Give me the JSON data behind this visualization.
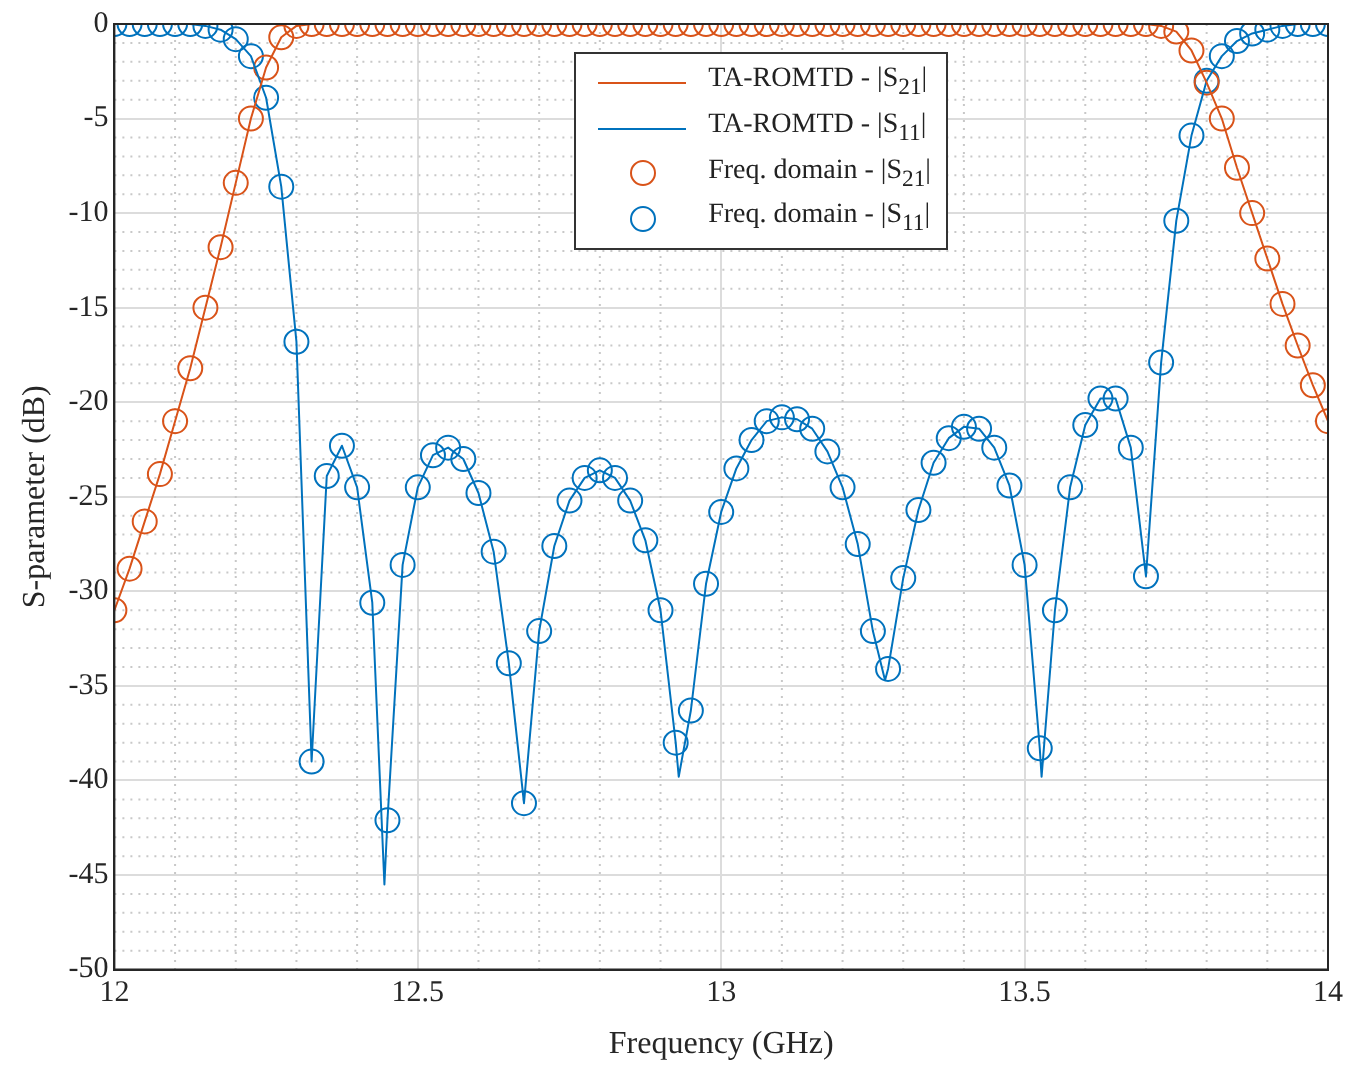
{
  "chart_data": {
    "type": "line",
    "xlabel": "Frequency (GHz)",
    "ylabel": "S-parameter (dB)",
    "xlim": [
      12,
      14
    ],
    "xticks": [
      12,
      12.5,
      13,
      13.5,
      14
    ],
    "ylim": [
      -50,
      0
    ],
    "yticks": [
      -50,
      -45,
      -40,
      -35,
      -30,
      -25,
      -20,
      -15,
      -10,
      -5,
      0
    ],
    "grid": true,
    "legend": "top",
    "marker": "circle",
    "series": [
      {
        "name": "TA-ROMTD - |S$_{21}$|",
        "type": "line",
        "marker": "none",
        "color": "#d95319",
        "x": [
          12,
          12.025,
          12.05,
          12.075,
          12.1,
          12.125,
          12.15,
          12.175,
          12.2,
          12.225,
          12.25,
          12.275,
          12.3,
          12.325,
          12.35,
          12.375,
          12.4,
          12.425,
          12.45,
          12.475,
          12.5,
          12.525,
          12.55,
          12.575,
          12.6,
          12.625,
          12.65,
          12.675,
          12.7,
          12.725,
          12.75,
          12.775,
          12.8,
          12.825,
          12.85,
          12.875,
          12.9,
          12.925,
          12.95,
          12.975,
          13,
          13.025,
          13.05,
          13.075,
          13.1,
          13.125,
          13.15,
          13.175,
          13.2,
          13.225,
          13.25,
          13.275,
          13.3,
          13.325,
          13.35,
          13.375,
          13.4,
          13.425,
          13.45,
          13.475,
          13.5,
          13.525,
          13.55,
          13.575,
          13.6,
          13.625,
          13.65,
          13.675,
          13.7,
          13.725,
          13.75,
          13.775,
          13.8,
          13.825,
          13.85,
          13.875,
          13.9,
          13.925,
          13.95,
          13.975,
          14
        ],
        "values": [
          -31.0,
          -28.8,
          -26.3,
          -23.8,
          -21.0,
          -18.2,
          -15.0,
          -11.8,
          -8.4,
          -5.0,
          -2.3,
          -0.7,
          -0.1,
          0,
          0,
          0,
          0,
          0,
          0,
          0,
          0,
          0,
          0,
          0,
          0,
          0,
          0,
          0,
          0,
          0,
          0,
          0,
          0,
          0,
          0,
          0,
          0,
          0,
          0,
          0,
          0,
          0,
          0,
          0,
          0,
          0,
          0,
          0,
          0,
          0,
          0,
          0,
          0,
          0,
          0,
          0,
          0,
          0,
          0,
          0,
          0,
          0,
          0,
          0,
          0,
          0,
          0,
          0,
          0,
          -0.1,
          -0.4,
          -1.4,
          -3.1,
          -5.0,
          -7.6,
          -10.0,
          -12.4,
          -14.8,
          -17.0,
          -19.1,
          -21.0
        ]
      },
      {
        "name": "TA-ROMTD - |S$_{11}$|",
        "type": "line",
        "marker": "none",
        "color": "#0072bd",
        "x": [
          12,
          12.025,
          12.05,
          12.075,
          12.1,
          12.125,
          12.15,
          12.175,
          12.2,
          12.225,
          12.25,
          12.275,
          12.3,
          12.325,
          12.35,
          12.375,
          12.4,
          12.425,
          12.445,
          12.45,
          12.475,
          12.5,
          12.525,
          12.55,
          12.575,
          12.6,
          12.625,
          12.65,
          12.675,
          12.7,
          12.725,
          12.75,
          12.775,
          12.8,
          12.825,
          12.85,
          12.875,
          12.9,
          12.925,
          12.93,
          12.95,
          12.975,
          13,
          13.025,
          13.05,
          13.075,
          13.1,
          13.125,
          13.15,
          13.175,
          13.2,
          13.225,
          13.25,
          13.27,
          13.275,
          13.3,
          13.325,
          13.35,
          13.375,
          13.4,
          13.425,
          13.45,
          13.475,
          13.5,
          13.525,
          13.528,
          13.55,
          13.575,
          13.6,
          13.625,
          13.65,
          13.675,
          13.7,
          13.725,
          13.75,
          13.775,
          13.8,
          13.825,
          13.85,
          13.875,
          13.9,
          13.925,
          13.95,
          13.975,
          14
        ],
        "values": [
          0,
          0,
          0,
          0,
          0,
          0,
          -0.1,
          -0.3,
          -0.8,
          -1.7,
          -3.9,
          -8.6,
          -16.8,
          -39.0,
          -23.9,
          -22.3,
          -24.5,
          -30.6,
          -45.5,
          -42.1,
          -28.6,
          -24.5,
          -22.8,
          -22.4,
          -23.0,
          -24.8,
          -27.9,
          -33.8,
          -41.2,
          -32.1,
          -27.6,
          -25.2,
          -24.0,
          -23.6,
          -24.0,
          -25.2,
          -27.3,
          -31.0,
          -38.0,
          -39.8,
          -36.3,
          -29.6,
          -25.8,
          -23.5,
          -22.0,
          -21.0,
          -20.8,
          -20.9,
          -21.4,
          -22.6,
          -24.5,
          -27.5,
          -32.1,
          -34.7,
          -34.1,
          -29.3,
          -25.7,
          -23.2,
          -21.9,
          -21.3,
          -21.4,
          -22.4,
          -24.4,
          -28.6,
          -38.3,
          -39.8,
          -31.0,
          -24.5,
          -21.2,
          -19.8,
          -19.8,
          -22.4,
          -29.2,
          -17.9,
          -10.4,
          -5.9,
          -3.0,
          -1.7,
          -0.9,
          -0.5,
          -0.3,
          -0.1,
          0,
          0,
          0
        ]
      },
      {
        "name": "Freq. domain - |S$_{21}$|",
        "type": "scatter",
        "color": "#d95319",
        "x": [
          12,
          12.025,
          12.05,
          12.075,
          12.1,
          12.125,
          12.15,
          12.175,
          12.2,
          12.225,
          12.25,
          12.275,
          12.3,
          12.325,
          12.35,
          12.375,
          12.4,
          12.425,
          12.45,
          12.475,
          12.5,
          12.525,
          12.55,
          12.575,
          12.6,
          12.625,
          12.65,
          12.675,
          12.7,
          12.725,
          12.75,
          12.775,
          12.8,
          12.825,
          12.85,
          12.875,
          12.9,
          12.925,
          12.95,
          12.975,
          13,
          13.025,
          13.05,
          13.075,
          13.1,
          13.125,
          13.15,
          13.175,
          13.2,
          13.225,
          13.25,
          13.275,
          13.3,
          13.325,
          13.35,
          13.375,
          13.4,
          13.425,
          13.45,
          13.475,
          13.5,
          13.525,
          13.55,
          13.575,
          13.6,
          13.625,
          13.65,
          13.675,
          13.7,
          13.725,
          13.75,
          13.775,
          13.8,
          13.825,
          13.85,
          13.875,
          13.9,
          13.925,
          13.95,
          13.975,
          14
        ],
        "values": [
          -31.0,
          -28.8,
          -26.3,
          -23.8,
          -21.0,
          -18.2,
          -15.0,
          -11.8,
          -8.4,
          -5.0,
          -2.3,
          -0.7,
          -0.1,
          0,
          0,
          0,
          0,
          0,
          0,
          0,
          0,
          0,
          0,
          0,
          0,
          0,
          0,
          0,
          0,
          0,
          0,
          0,
          0,
          0,
          0,
          0,
          0,
          0,
          0,
          0,
          0,
          0,
          0,
          0,
          0,
          0,
          0,
          0,
          0,
          0,
          0,
          0,
          0,
          0,
          0,
          0,
          0,
          0,
          0,
          0,
          0,
          0,
          0,
          0,
          0,
          0,
          0,
          0,
          0,
          -0.1,
          -0.4,
          -1.4,
          -3.1,
          -5.0,
          -7.6,
          -10.0,
          -12.4,
          -14.8,
          -17.0,
          -19.1,
          -21.0
        ]
      },
      {
        "name": "Freq. domain - |S$_{11}$|",
        "type": "scatter",
        "color": "#0072bd",
        "x": [
          12,
          12.025,
          12.05,
          12.075,
          12.1,
          12.125,
          12.15,
          12.175,
          12.2,
          12.225,
          12.25,
          12.275,
          12.3,
          12.325,
          12.35,
          12.375,
          12.4,
          12.425,
          12.45,
          12.475,
          12.5,
          12.525,
          12.55,
          12.575,
          12.6,
          12.625,
          12.65,
          12.675,
          12.7,
          12.725,
          12.75,
          12.775,
          12.8,
          12.825,
          12.85,
          12.875,
          12.9,
          12.925,
          12.95,
          12.975,
          13,
          13.025,
          13.05,
          13.075,
          13.1,
          13.125,
          13.15,
          13.175,
          13.2,
          13.225,
          13.25,
          13.275,
          13.3,
          13.325,
          13.35,
          13.375,
          13.4,
          13.425,
          13.45,
          13.475,
          13.5,
          13.525,
          13.55,
          13.575,
          13.6,
          13.625,
          13.65,
          13.675,
          13.7,
          13.725,
          13.75,
          13.775,
          13.8,
          13.825,
          13.85,
          13.875,
          13.9,
          13.925,
          13.95,
          13.975,
          14
        ],
        "values": [
          0,
          0,
          0,
          0,
          0,
          0,
          -0.1,
          -0.3,
          -0.8,
          -1.7,
          -3.9,
          -8.6,
          -16.8,
          -39.0,
          -23.9,
          -22.3,
          -24.5,
          -30.6,
          -42.1,
          -28.6,
          -24.5,
          -22.8,
          -22.4,
          -23.0,
          -24.8,
          -27.9,
          -33.8,
          -41.2,
          -32.1,
          -27.6,
          -25.2,
          -24.0,
          -23.6,
          -24.0,
          -25.2,
          -27.3,
          -31.0,
          -38.0,
          -36.3,
          -29.6,
          -25.8,
          -23.5,
          -22.0,
          -21.0,
          -20.8,
          -20.9,
          -21.4,
          -22.6,
          -24.5,
          -27.5,
          -32.1,
          -34.1,
          -29.3,
          -25.7,
          -23.2,
          -21.9,
          -21.3,
          -21.4,
          -22.4,
          -24.4,
          -28.6,
          -38.3,
          -31.0,
          -24.5,
          -21.2,
          -19.8,
          -19.8,
          -22.4,
          -29.2,
          -17.9,
          -10.4,
          -5.9,
          -3.0,
          -1.7,
          -0.9,
          -0.5,
          -0.3,
          -0.1,
          0,
          0,
          0
        ]
      }
    ]
  }
}
